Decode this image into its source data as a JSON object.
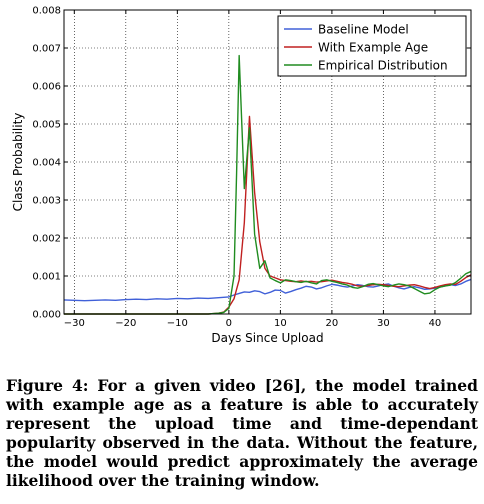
{
  "chart_data": {
    "type": "line",
    "xlabel": "Days Since Upload",
    "ylabel": "Class Probability",
    "xlim": [
      -32,
      47
    ],
    "ylim": [
      0,
      0.008
    ],
    "xticks": [
      -30,
      -20,
      -10,
      0,
      10,
      20,
      30,
      40
    ],
    "xtick_labels": [
      "−30",
      "−20",
      "−10",
      "0",
      "10",
      "20",
      "30",
      "40"
    ],
    "yticks": [
      0,
      0.001,
      0.002,
      0.003,
      0.004,
      0.005,
      0.006,
      0.007,
      0.008
    ],
    "ytick_labels": [
      "0.000",
      "0.001",
      "0.002",
      "0.003",
      "0.004",
      "0.005",
      "0.006",
      "0.007",
      "0.008"
    ],
    "grid": true,
    "legend_position": "top-right",
    "series": [
      {
        "name": "Baseline Model",
        "color": "#4060d8",
        "x": [
          -32,
          -30,
          -28,
          -26,
          -24,
          -22,
          -20,
          -18,
          -16,
          -14,
          -12,
          -10,
          -8,
          -6,
          -4,
          -2,
          0,
          1,
          2,
          3,
          4,
          5,
          6,
          7,
          8,
          9,
          10,
          11,
          12,
          13,
          14,
          15,
          16,
          17,
          18,
          19,
          20,
          21,
          22,
          23,
          24,
          25,
          26,
          27,
          28,
          29,
          30,
          31,
          32,
          33,
          34,
          35,
          36,
          37,
          38,
          39,
          40,
          41,
          42,
          43,
          44,
          45,
          46,
          47
        ],
        "y": [
          0.00037,
          0.00036,
          0.00035,
          0.00036,
          0.00037,
          0.00036,
          0.00038,
          0.00039,
          0.00038,
          0.0004,
          0.00039,
          0.00041,
          0.0004,
          0.00042,
          0.00041,
          0.00043,
          0.00045,
          0.0005,
          0.00054,
          0.00058,
          0.00057,
          0.00061,
          0.00059,
          0.00053,
          0.00057,
          0.00063,
          0.00062,
          0.00055,
          0.00059,
          0.00064,
          0.00068,
          0.00073,
          0.00071,
          0.00066,
          0.00069,
          0.00074,
          0.00078,
          0.00076,
          0.00073,
          0.00071,
          0.00074,
          0.00077,
          0.00075,
          0.00072,
          0.00071,
          0.00074,
          0.00077,
          0.00079,
          0.00073,
          0.00069,
          0.00066,
          0.0007,
          0.00072,
          0.00069,
          0.00065,
          0.00066,
          0.00068,
          0.00071,
          0.00074,
          0.00077,
          0.00075,
          0.00079,
          0.00086,
          0.00091
        ]
      },
      {
        "name": "With Example Age",
        "color": "#c02020",
        "x": [
          -32,
          -20,
          -10,
          -4,
          -2,
          -1,
          0,
          1,
          2,
          3,
          4,
          5,
          6,
          7,
          8,
          9,
          10,
          11,
          12,
          13,
          14,
          15,
          16,
          17,
          18,
          19,
          20,
          21,
          22,
          23,
          24,
          25,
          26,
          27,
          28,
          29,
          30,
          31,
          32,
          33,
          34,
          35,
          36,
          37,
          38,
          39,
          40,
          41,
          42,
          43,
          44,
          45,
          46,
          47
        ],
        "y": [
          0,
          0,
          0,
          0,
          2e-05,
          5e-05,
          0.00018,
          0.0004,
          0.0009,
          0.0024,
          0.0052,
          0.0032,
          0.0019,
          0.0012,
          0.001,
          0.00095,
          0.0009,
          0.00088,
          0.00086,
          0.00085,
          0.00087,
          0.00085,
          0.00086,
          0.00084,
          0.00085,
          0.00087,
          0.00089,
          0.00086,
          0.00083,
          0.00081,
          0.00078,
          0.00074,
          0.00073,
          0.00075,
          0.00077,
          0.00078,
          0.00077,
          0.00075,
          0.00073,
          0.00072,
          0.00074,
          0.00076,
          0.00077,
          0.00074,
          0.0007,
          0.00067,
          0.0007,
          0.00074,
          0.00077,
          0.00079,
          0.00078,
          0.00086,
          0.00096,
          0.00103
        ]
      },
      {
        "name": "Empirical Distribution",
        "color": "#208c20",
        "x": [
          -32,
          -20,
          -10,
          -4,
          -2,
          -1,
          0,
          1,
          1.5,
          2,
          3,
          4,
          5,
          6,
          7,
          8,
          9,
          10,
          11,
          12,
          13,
          14,
          15,
          16,
          17,
          18,
          19,
          20,
          21,
          22,
          23,
          24,
          25,
          26,
          27,
          28,
          29,
          30,
          31,
          32,
          33,
          34,
          35,
          36,
          37,
          38,
          39,
          40,
          41,
          42,
          43,
          44,
          45,
          46,
          47
        ],
        "y": [
          0,
          0,
          0,
          0,
          2e-05,
          4e-05,
          0.00015,
          0.001,
          0.0037,
          0.0068,
          0.0033,
          0.0049,
          0.0021,
          0.0012,
          0.0014,
          0.00095,
          0.00088,
          0.00082,
          0.0009,
          0.00088,
          0.00085,
          0.00083,
          0.00086,
          0.00082,
          0.00079,
          0.00088,
          0.0009,
          0.00086,
          0.00083,
          0.00079,
          0.00076,
          0.0007,
          0.00068,
          0.00072,
          0.00078,
          0.0008,
          0.00077,
          0.00074,
          0.00072,
          0.00076,
          0.00079,
          0.00077,
          0.00074,
          0.00067,
          0.0006,
          0.00053,
          0.00055,
          0.00064,
          0.00071,
          0.00074,
          0.00076,
          0.00083,
          0.00094,
          0.00106,
          0.00112
        ]
      }
    ]
  },
  "caption": "Figure 4: For a given video [26], the model trained with example age as a feature is able to accurately represent the upload time and time-dependant popularity observed in the data. Without the feature, the model would predict approximately the average likelihood over the training window."
}
